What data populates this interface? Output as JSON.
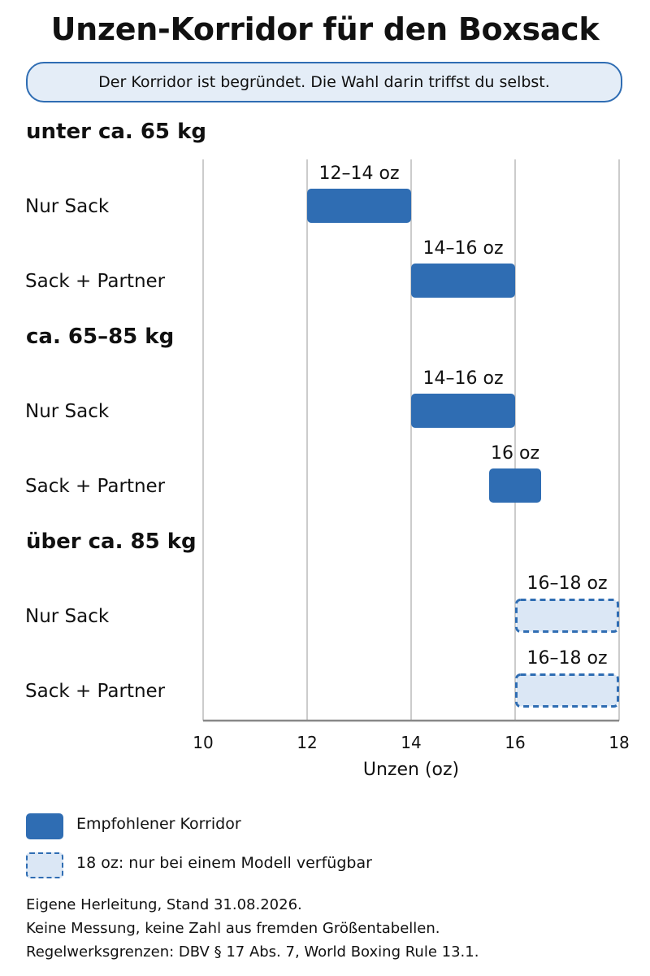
{
  "title": "Unzen-Korridor für den Boxsack",
  "subtitle": "Der Korridor ist begründet. Die Wahl darin triffst du selbst.",
  "chart_data": {
    "type": "bar",
    "orientation": "horizontal-range",
    "xlabel": "Unzen (oz)",
    "xlim": [
      10,
      18
    ],
    "xticks": [
      10,
      12,
      14,
      16,
      18
    ],
    "grid": true,
    "groups": [
      {
        "name": "unter ca. 65 kg",
        "rows": [
          {
            "label": "Nur Sack",
            "start": 12,
            "end": 14,
            "value_label": "12–14 oz",
            "style": "solid"
          },
          {
            "label": "Sack + Partner",
            "start": 14,
            "end": 16,
            "value_label": "14–16 oz",
            "style": "solid"
          }
        ]
      },
      {
        "name": "ca. 65–85 kg",
        "rows": [
          {
            "label": "Nur Sack",
            "start": 14,
            "end": 16,
            "value_label": "14–16 oz",
            "style": "solid"
          },
          {
            "label": "Sack + Partner",
            "start": 15.5,
            "end": 16.5,
            "value_label": "16 oz",
            "style": "solid"
          }
        ]
      },
      {
        "name": "über ca. 85 kg",
        "rows": [
          {
            "label": "Nur Sack",
            "start": 16,
            "end": 18,
            "value_label": "16–18 oz",
            "style": "dashed"
          },
          {
            "label": "Sack + Partner",
            "start": 16,
            "end": 18,
            "value_label": "16–18 oz",
            "style": "dashed"
          }
        ]
      }
    ],
    "colors": {
      "solid": "#2f6db3",
      "dashed_fill": "#dbe7f5",
      "dashed_stroke": "#2f6db3",
      "grid": "#cccccc",
      "axis": "#888888"
    }
  },
  "legend": {
    "items": [
      {
        "label": "Empfohlener Korridor",
        "style": "solid"
      },
      {
        "label": "18 oz: nur bei einem Modell verfügbar",
        "style": "dashed"
      }
    ]
  },
  "footer": {
    "lines": [
      "Eigene Herleitung, Stand 31.08.2026.",
      "Keine Messung, keine Zahl aus fremden Größentabellen.",
      "Regelwerksgrenzen: DBV § 17 Abs. 7, World Boxing Rule 13.1."
    ]
  }
}
